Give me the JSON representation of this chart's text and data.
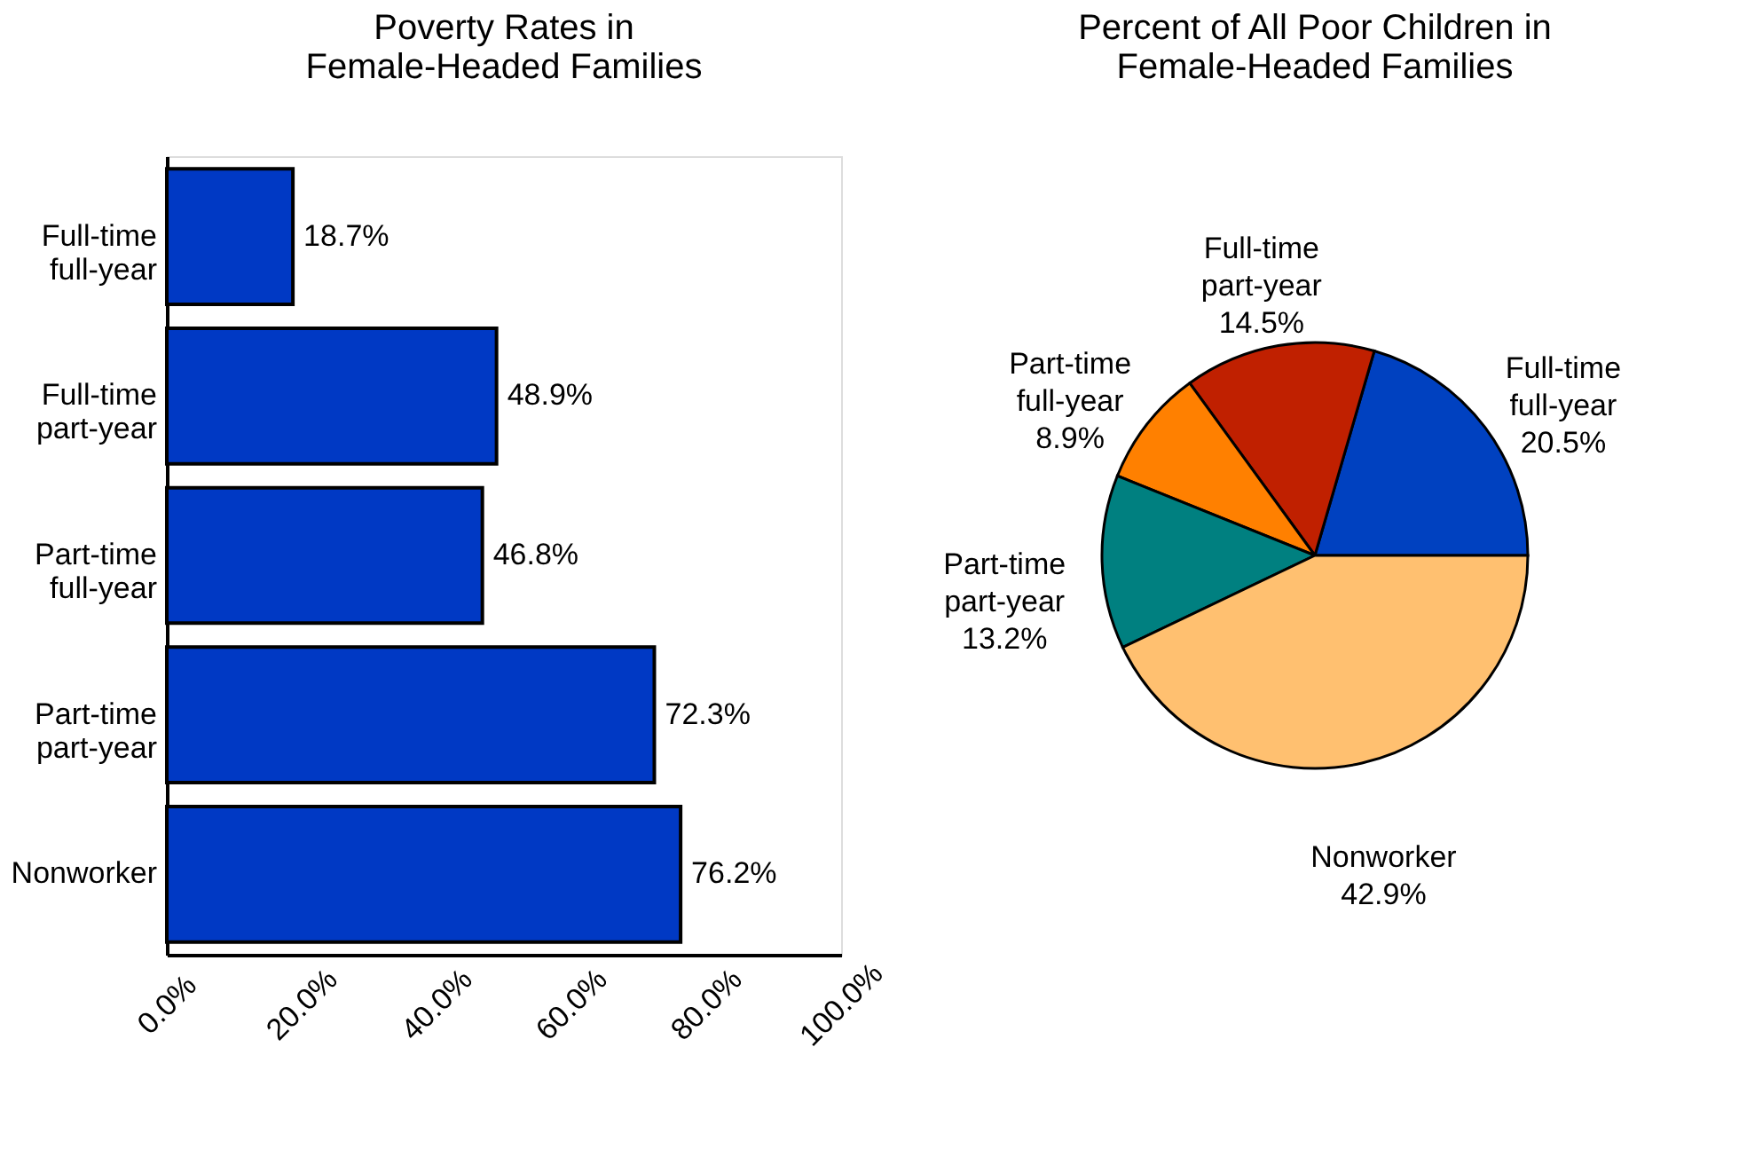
{
  "chart_data": [
    {
      "type": "bar",
      "orientation": "horizontal",
      "title": "Poverty Rates in\nFemale-Headed Families",
      "categories": [
        "Full-time full-year",
        "Full-time part-year",
        "Part-time full-year",
        "Part-time part-year",
        "Nonworker"
      ],
      "values": [
        18.7,
        48.9,
        46.8,
        72.3,
        76.2
      ],
      "color": "#0039c4",
      "value_labels": [
        "18.7%",
        "48.9%",
        "46.8%",
        "72.3%",
        "76.2%"
      ],
      "xlim": [
        0,
        100
      ],
      "xticks": [
        {
          "value": 0,
          "label": "0.0%"
        },
        {
          "value": 20,
          "label": "20.0%"
        },
        {
          "value": 40,
          "label": "40.0%"
        },
        {
          "value": 60,
          "label": "60.0%"
        },
        {
          "value": 80,
          "label": "80.0%"
        },
        {
          "value": 100,
          "label": "100.0%"
        }
      ],
      "grid": false
    },
    {
      "type": "pie",
      "title": "Percent of All Poor Children in\nFemale-Headed Families",
      "categories": [
        "Full-time full-year",
        "Full-time part-year",
        "Part-time full-year",
        "Part-time part-year",
        "Nonworker"
      ],
      "values": [
        20.5,
        14.5,
        8.9,
        13.2,
        42.9
      ],
      "colors": [
        "#0041c0",
        "#c02000",
        "#ff8000",
        "#008080",
        "#ffc070"
      ],
      "value_labels": [
        "20.5%",
        "14.5%",
        "8.9%",
        "13.2%",
        "42.9%"
      ]
    }
  ]
}
